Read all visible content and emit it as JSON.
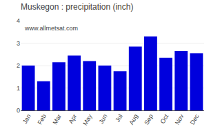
{
  "chart_data": {
    "type": "bar",
    "title": "Muskegon : precipitation (inch)",
    "categories": [
      "Jan",
      "Feb",
      "Mar",
      "Apr",
      "May",
      "Jun",
      "Jul",
      "Aug",
      "Sep",
      "Oct",
      "Nov",
      "Dec"
    ],
    "values": [
      2.0,
      1.3,
      2.15,
      2.45,
      2.2,
      2.0,
      1.75,
      2.85,
      3.3,
      2.35,
      2.65,
      2.55
    ],
    "color": "#0000dd",
    "ylim": [
      0,
      4
    ],
    "yticks": [
      0,
      1,
      2,
      3,
      4
    ],
    "grid": true,
    "annotations": [
      "www.allmetsat.com"
    ]
  }
}
